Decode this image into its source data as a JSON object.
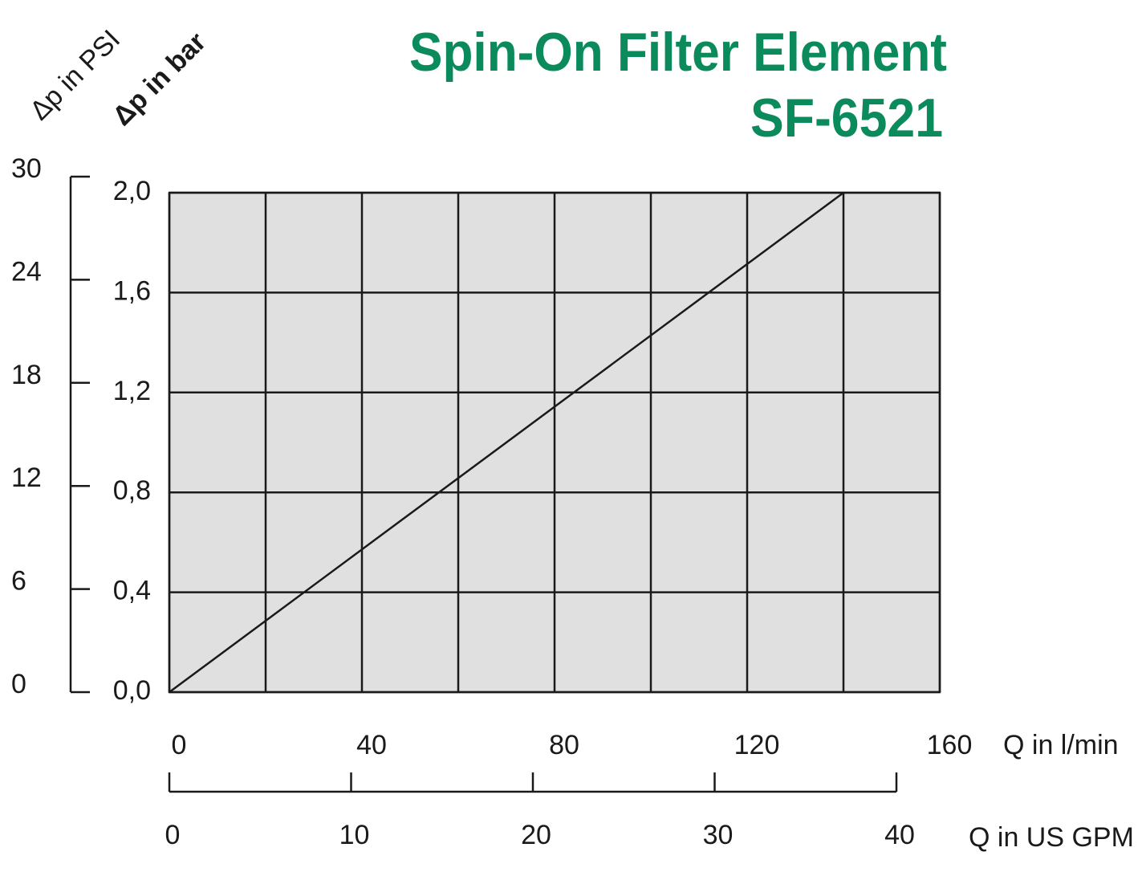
{
  "chart_data": {
    "type": "line",
    "title": "Spin-On Filter Element",
    "subtitle": "SF-6521",
    "x": [
      0,
      140
    ],
    "values": [
      0,
      2.0
    ],
    "color": "#1a1a1a",
    "xlim": [
      0,
      160
    ],
    "xticks": [
      0,
      40,
      80,
      120,
      160
    ],
    "xgrid": [
      0,
      20,
      40,
      60,
      80,
      100,
      120,
      140,
      160
    ],
    "xlabel": "Q in l/min",
    "ylim": [
      0,
      2.0
    ],
    "yticks": [
      {
        "value": 0,
        "label": "0,0"
      },
      {
        "value": 0.4,
        "label": "0,4"
      },
      {
        "value": 0.8,
        "label": "0,8"
      },
      {
        "value": 1.2,
        "label": "1,2"
      },
      {
        "value": 1.6,
        "label": "1,6"
      },
      {
        "value": 2.0,
        "label": "2,0"
      }
    ],
    "ylabel": "Δp in bar",
    "y2lim": [
      0,
      30
    ],
    "y2ticks": [
      0,
      6,
      12,
      18,
      24,
      30
    ],
    "y2label": "Δp in PSI",
    "x2lim": [
      0,
      40
    ],
    "x2ticks": [
      0,
      10,
      20,
      30,
      40
    ],
    "x2label": "Q in US GPM",
    "plot_background": "#e0e0e0",
    "grid": true
  }
}
